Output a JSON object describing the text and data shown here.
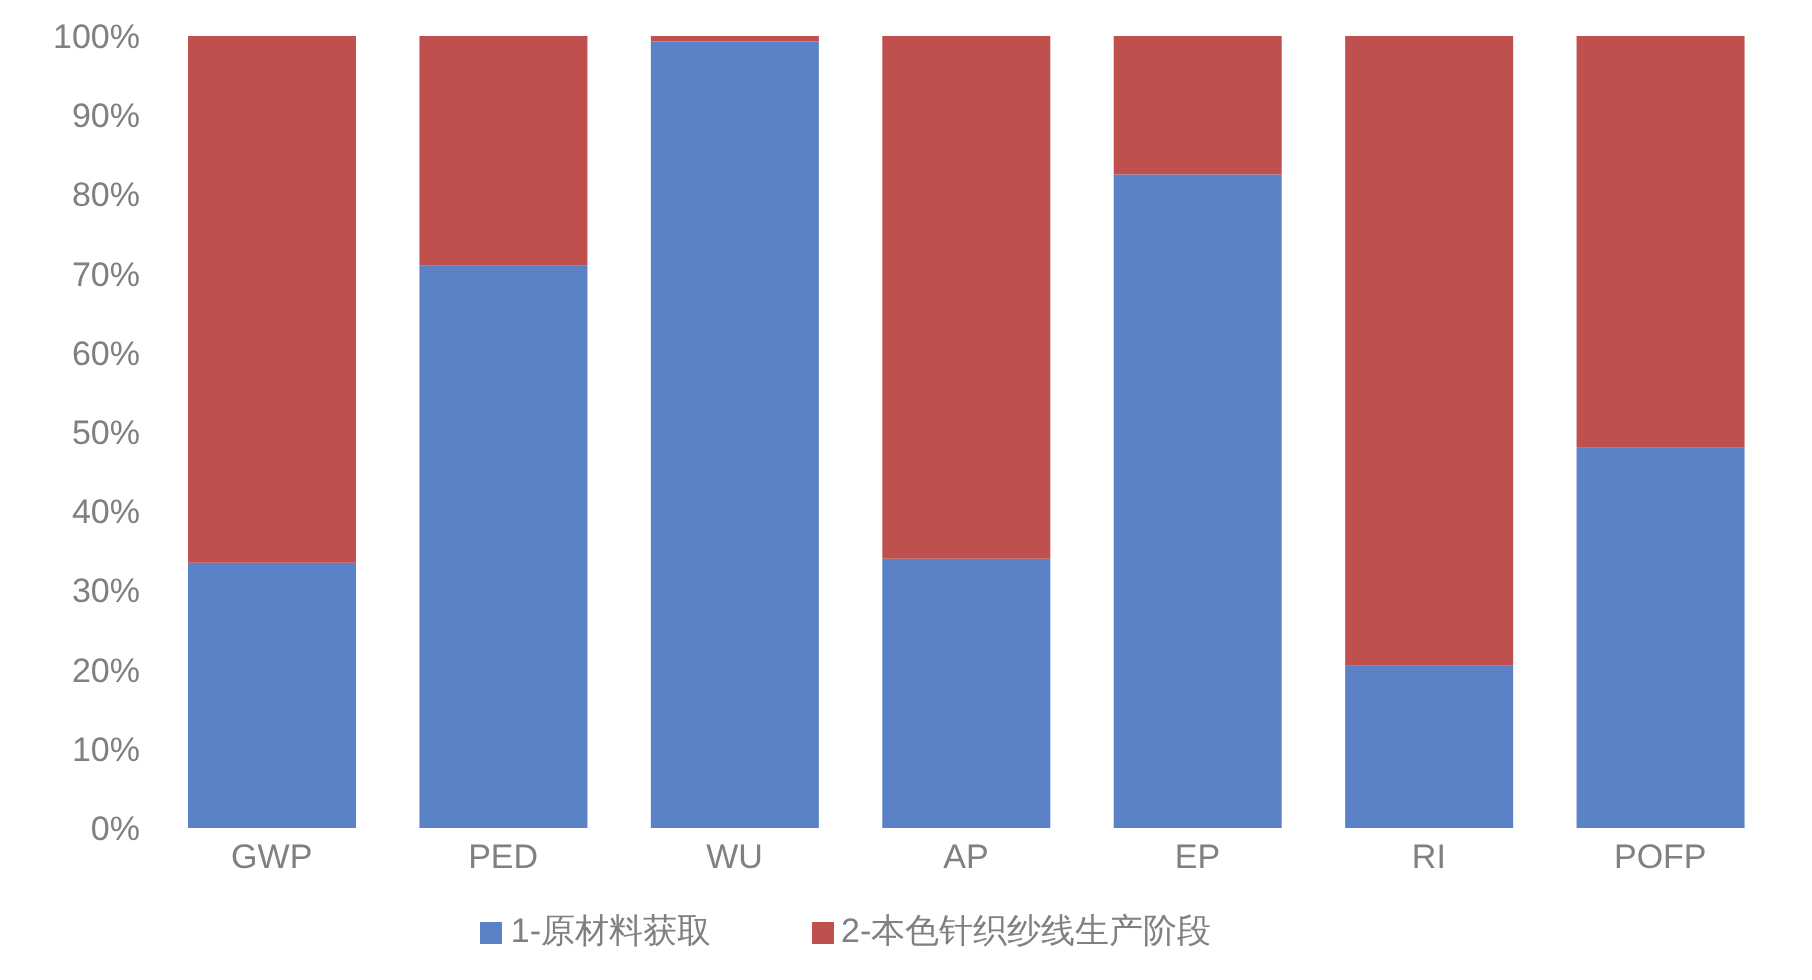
{
  "chart_data": {
    "type": "bar",
    "stacked": true,
    "categories": [
      "GWP",
      "PED",
      "WU",
      "AP",
      "EP",
      "RI",
      "POFP"
    ],
    "series": [
      {
        "name": "1-原材料获取",
        "color": "#5b82c6",
        "values": [
          33.5,
          71,
          99.3,
          34,
          82.5,
          20.5,
          48
        ]
      },
      {
        "name": "2-本色针织纱线生产阶段",
        "color": "#c0504d",
        "values": [
          66.5,
          29,
          0.7,
          66,
          17.5,
          79.5,
          52
        ]
      }
    ],
    "ylim": [
      0,
      100
    ],
    "yticks": [
      {
        "value": 0,
        "label": "0%"
      },
      {
        "value": 10,
        "label": "10%"
      },
      {
        "value": 20,
        "label": "20%"
      },
      {
        "value": 30,
        "label": "30%"
      },
      {
        "value": 40,
        "label": "40%"
      },
      {
        "value": 50,
        "label": "50%"
      },
      {
        "value": 60,
        "label": "60%"
      },
      {
        "value": 70,
        "label": "70%"
      },
      {
        "value": 80,
        "label": "80%"
      },
      {
        "value": 90,
        "label": "90%"
      },
      {
        "value": 100,
        "label": "100%"
      }
    ],
    "grid": false,
    "legend": "bottom"
  }
}
